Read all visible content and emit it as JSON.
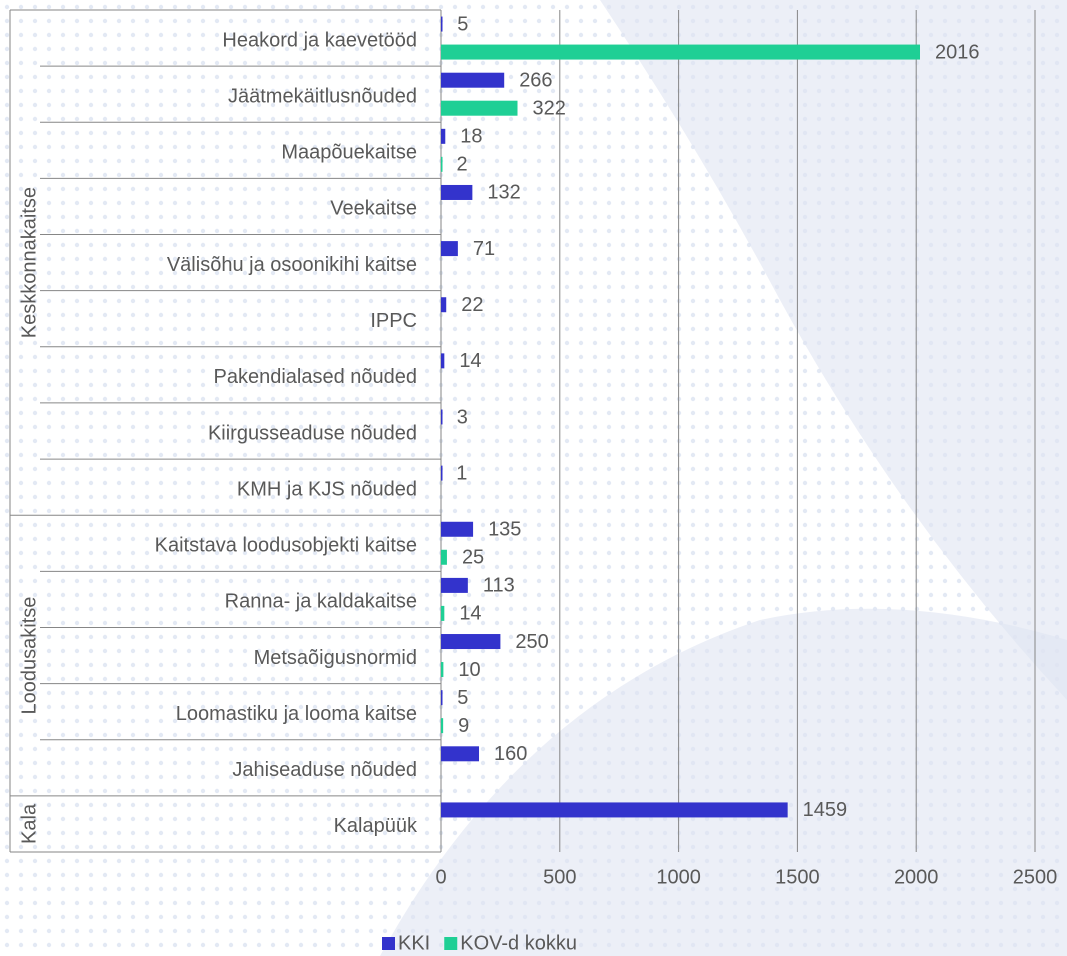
{
  "chart_data": {
    "type": "bar",
    "orientation": "horizontal",
    "groups": [
      {
        "name": "Keskkonnakaitse",
        "categories": [
          "Heakord ja kaevetööd",
          "Jäätmekäitlusnõuded",
          "Maapõuekaitse",
          "Veekaitse",
          "Välisõhu ja osoonikihi kaitse",
          "IPPC",
          "Pakendialased nõuded",
          "Kiirgusseaduse nõuded",
          "KMH ja KJS nõuded"
        ]
      },
      {
        "name": "Loodusakitse",
        "categories": [
          "Kaitstava loodusobjekti kaitse",
          "Ranna- ja kaldakaitse",
          "Metsaõigusnormid",
          "Loomastiku ja looma kaitse",
          "Jahiseaduse nõuded"
        ]
      },
      {
        "name": "Kala",
        "categories": [
          "Kalapüük"
        ]
      }
    ],
    "series": [
      {
        "name": "KKI",
        "color": "#3333cc",
        "values": [
          5,
          266,
          18,
          132,
          71,
          22,
          14,
          3,
          1,
          135,
          113,
          250,
          5,
          160,
          1459
        ]
      },
      {
        "name": "KOV-d kokku",
        "color": "#1fcf95",
        "values": [
          2016,
          322,
          2,
          null,
          null,
          null,
          null,
          null,
          null,
          25,
          14,
          10,
          9,
          null,
          null
        ]
      }
    ],
    "xlim": [
      0,
      2500
    ],
    "xticks": [
      0,
      500,
      1000,
      1500,
      2000,
      2500
    ],
    "grid": true,
    "legend": "bottom"
  }
}
